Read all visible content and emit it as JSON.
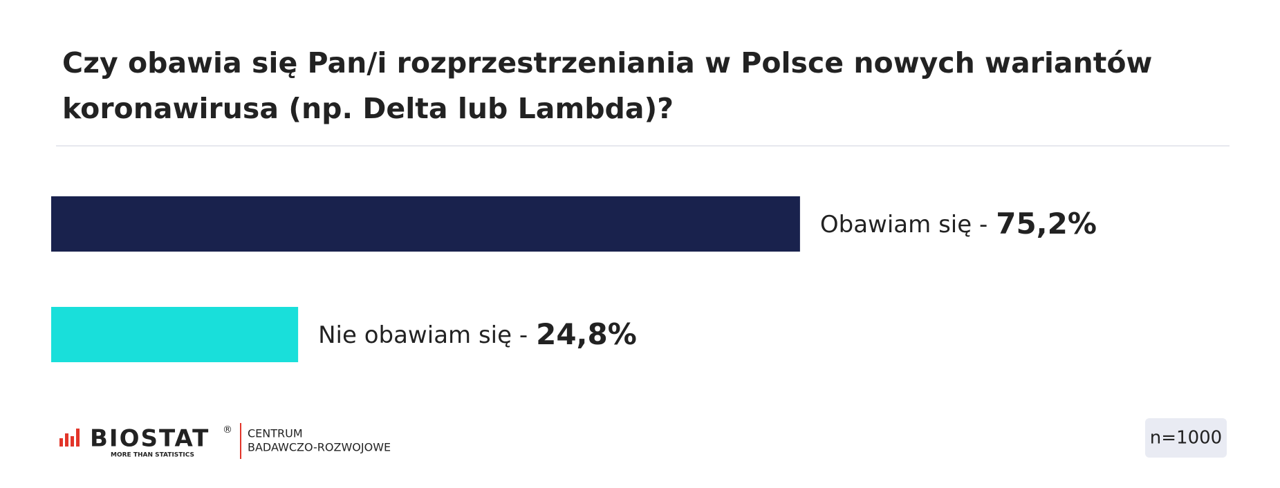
{
  "chart_data": {
    "type": "bar",
    "orientation": "horizontal",
    "title": "Czy obawia się Pan/i rozprzestrzeniania w Polsce nowych wariantów koronawirusa (np. Delta lub Lambda)?",
    "categories": [
      "Obawiam się -",
      "Nie obawiam się -"
    ],
    "values": [
      75.2,
      24.8
    ],
    "value_labels": [
      "75,2%",
      "24,8%"
    ],
    "colors": [
      "#19224d",
      "#19dfda"
    ]
  },
  "footer": {
    "brand": "BIOSTAT",
    "registered": "®",
    "tagline": "MORE THAN STATISTICS",
    "unit_line1": "CENTRUM",
    "unit_line2": "BADAWCZO-ROZWOJOWE",
    "sample": "n=1000"
  }
}
